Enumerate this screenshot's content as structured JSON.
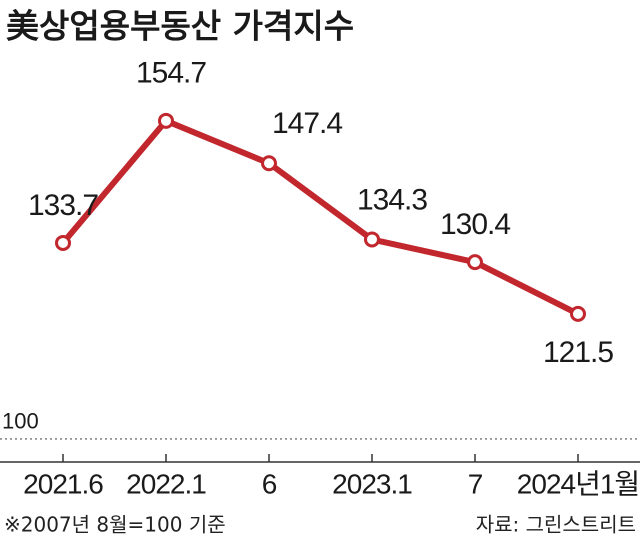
{
  "chart_data": {
    "type": "line",
    "title": "美상업용부동산 가격지수",
    "categories": [
      "2021.6",
      "2022.1",
      "6",
      "2023.1",
      "7",
      "2024년1월"
    ],
    "series": [
      {
        "color": "#c1272d",
        "values": [
          133.7,
          154.7,
          147.4,
          134.3,
          130.4,
          121.5
        ]
      }
    ],
    "ylim": [
      95,
      160
    ],
    "reference_line": 100,
    "note": "※2007년 8월=100 기준",
    "source": "자료: 그린스트리트"
  }
}
